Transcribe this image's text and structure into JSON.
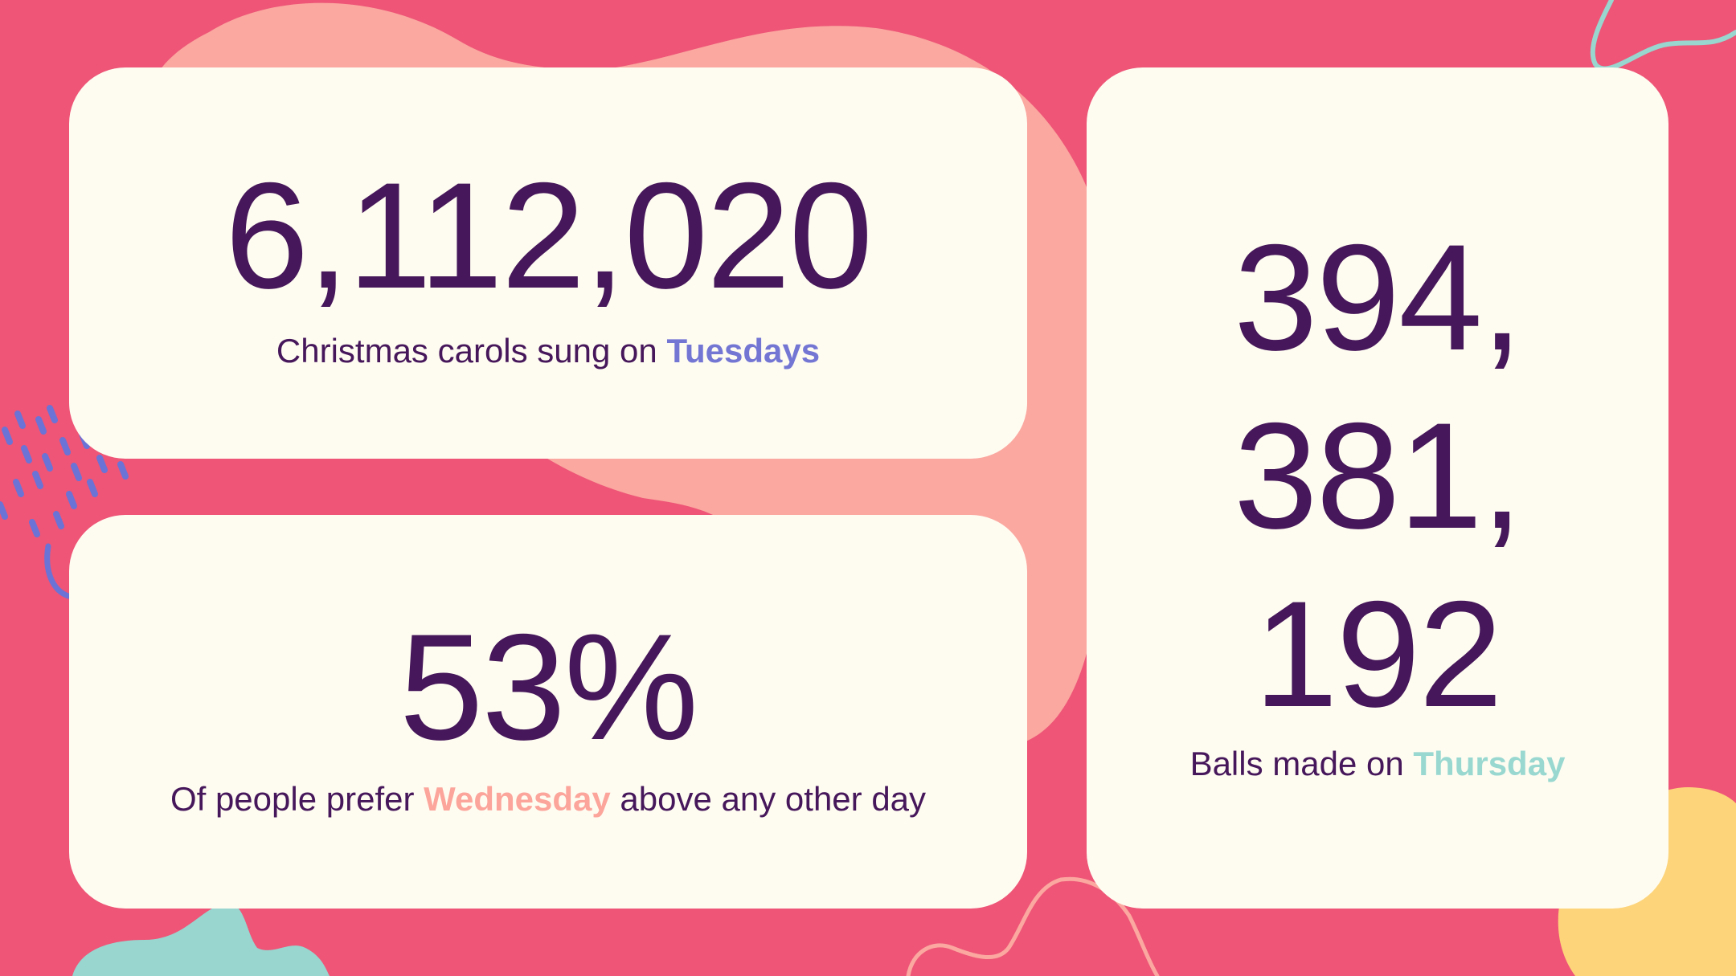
{
  "colors": {
    "background": "#ee5577",
    "card": "#fefcf1",
    "text": "#46175a",
    "accent_tuesday": "#7476d4",
    "accent_wednesday": "#fca59b",
    "accent_thursday": "#99d8d0",
    "blob_peach": "#fba8a0",
    "blob_teal": "#98d6cf",
    "blob_yellow": "#fdd47a"
  },
  "cards": {
    "carols": {
      "number": "6,112,020",
      "caption_before": "Christmas carols sung on ",
      "highlight": "Tuesdays",
      "caption_after": ""
    },
    "wednesday": {
      "number": "53%",
      "caption_before": "Of people prefer ",
      "highlight": "Wednesday",
      "caption_after": " above any other day"
    },
    "balls": {
      "number_lines": [
        "394,",
        "381,",
        "192"
      ],
      "caption_before": "Balls made on ",
      "highlight": "Thursday",
      "caption_after": ""
    }
  }
}
